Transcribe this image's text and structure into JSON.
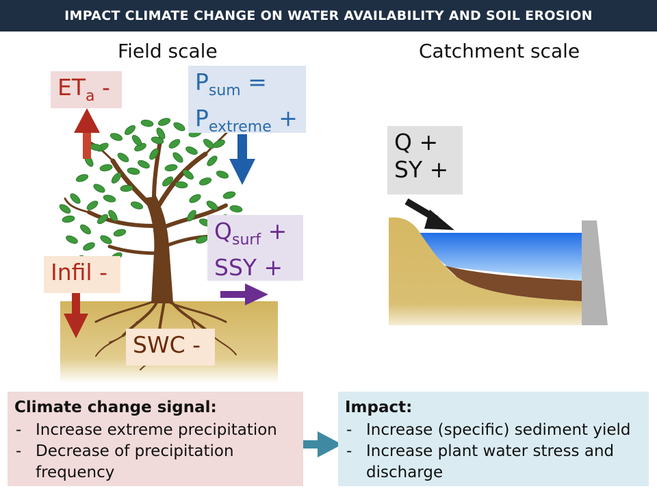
{
  "header": {
    "title": "IMPACT CLIMATE CHANGE ON WATER AVAILABILITY AND SOIL EROSION"
  },
  "scales": {
    "field": "Field scale",
    "catchment": "Catchment scale"
  },
  "labels": {
    "eta": {
      "main": "ET",
      "sub": "a",
      "sign": " -"
    },
    "psum": {
      "main": "P",
      "sub": "sum",
      "sign": " ="
    },
    "pextreme": {
      "main": "P",
      "sub": "extreme",
      "sign": " +"
    },
    "qsurf": {
      "main": "Q",
      "sub": "surf",
      "sign": " +"
    },
    "ssy": {
      "text": "SSY +"
    },
    "infil": {
      "text": "Infil -"
    },
    "swc": {
      "text": "SWC -"
    },
    "q": {
      "text": "Q +"
    },
    "sy": {
      "text": "SY +"
    }
  },
  "signal_box": {
    "title": "Climate change signal:",
    "items": [
      "Increase extreme precipitation",
      "Decrease of precipitation frequency"
    ]
  },
  "impact_box": {
    "title": "Impact:",
    "items": [
      "Increase (specific) sediment yield",
      "Increase plant water stress and discharge"
    ]
  },
  "colors": {
    "header_bg": "#1e2e43",
    "red_arrow": "#b12a1f",
    "blue_arrow": "#1f5ea8",
    "purple_arrow": "#6a2d90",
    "teal_arrow": "#3f8aa2",
    "soil": "#d6b863",
    "sediment": "#7a4a2a",
    "water": "#3f8fe6",
    "dam": "#b3b3b3",
    "leaf": "#3f9a3c"
  }
}
